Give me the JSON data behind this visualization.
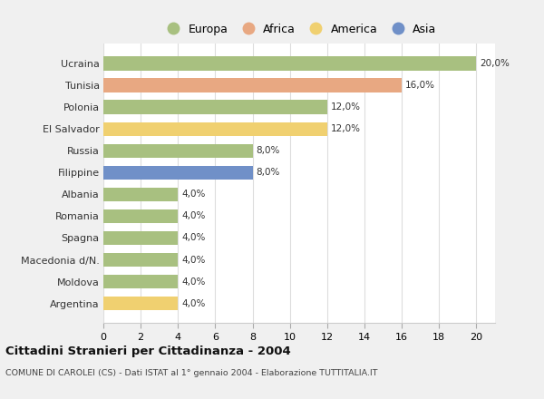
{
  "categories": [
    "Ucraina",
    "Tunisia",
    "Polonia",
    "El Salvador",
    "Russia",
    "Filippine",
    "Albania",
    "Romania",
    "Spagna",
    "Macedonia d/N.",
    "Moldova",
    "Argentina"
  ],
  "values": [
    20.0,
    16.0,
    12.0,
    12.0,
    8.0,
    8.0,
    4.0,
    4.0,
    4.0,
    4.0,
    4.0,
    4.0
  ],
  "colors": [
    "#a8c080",
    "#e8a882",
    "#a8c080",
    "#f0d070",
    "#a8c080",
    "#7090c8",
    "#a8c080",
    "#a8c080",
    "#a8c080",
    "#a8c080",
    "#a8c080",
    "#f0d070"
  ],
  "legend_labels": [
    "Europa",
    "Africa",
    "America",
    "Asia"
  ],
  "legend_colors": [
    "#a8c080",
    "#e8a882",
    "#f0d070",
    "#7090c8"
  ],
  "title": "Cittadini Stranieri per Cittadinanza - 2004",
  "subtitle": "COMUNE DI CAROLEI (CS) - Dati ISTAT al 1° gennaio 2004 - Elaborazione TUTTITALIA.IT",
  "xlim": [
    0,
    21
  ],
  "xticks": [
    0,
    2,
    4,
    6,
    8,
    10,
    12,
    14,
    16,
    18,
    20
  ],
  "figure_bg": "#f0f0f0",
  "axes_bg": "#ffffff",
  "grid_color": "#dddddd",
  "bar_height": 0.65
}
